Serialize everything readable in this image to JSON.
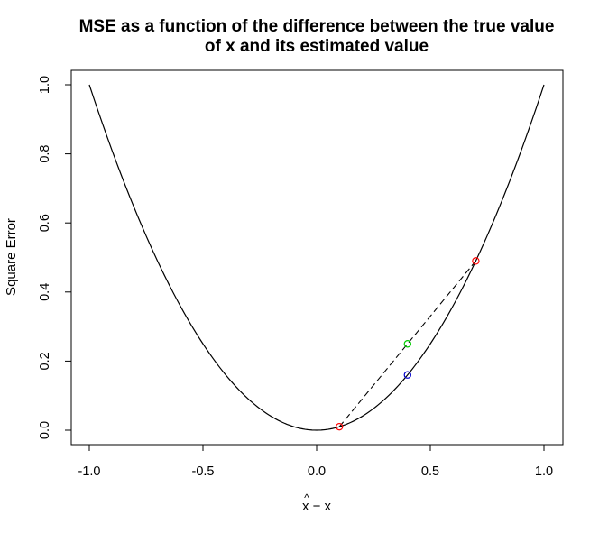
{
  "chart_data": {
    "type": "line",
    "title": "MSE as a function of the difference between the true value\nof x and its estimated value",
    "xlabel": "x̂ − x",
    "xlabel_parts": {
      "hat": "^",
      "main": "x − x"
    },
    "ylabel": "Square Error",
    "xlim": [
      -1.0,
      1.0
    ],
    "ylim": [
      0.0,
      1.0
    ],
    "x_ticks": [
      -1.0,
      -0.5,
      0.0,
      0.5,
      1.0
    ],
    "x_tick_labels": [
      "-1.0",
      "-0.5",
      "0.0",
      "0.5",
      "1.0"
    ],
    "y_ticks": [
      0.0,
      0.2,
      0.4,
      0.6,
      0.8,
      1.0
    ],
    "y_tick_labels": [
      "0.0",
      "0.2",
      "0.4",
      "0.6",
      "0.8",
      "1.0"
    ],
    "grid": false,
    "series": [
      {
        "kind": "curve",
        "function": "x^2",
        "x_range": [
          -1.0,
          1.0
        ],
        "color": "#000000",
        "line_style": "solid"
      },
      {
        "kind": "segment",
        "x": [
          0.1,
          0.7
        ],
        "y": [
          0.01,
          0.49
        ],
        "color": "#000000",
        "line_style": "dashed"
      }
    ],
    "points": [
      {
        "x": 0.1,
        "y": 0.01,
        "color": "#ff0000"
      },
      {
        "x": 0.7,
        "y": 0.49,
        "color": "#ff0000"
      },
      {
        "x": 0.4,
        "y": 0.25,
        "color": "#00cc00"
      },
      {
        "x": 0.4,
        "y": 0.16,
        "color": "#0000cc"
      }
    ]
  }
}
